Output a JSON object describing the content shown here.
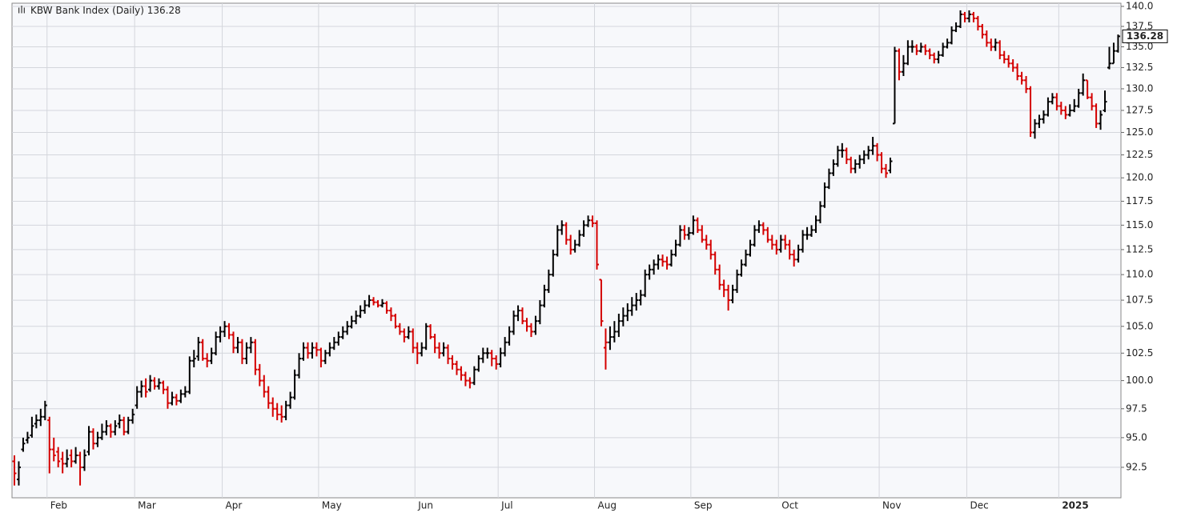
{
  "chart_data": {
    "type": "ohlc",
    "title": "KBW Bank Index (Daily)",
    "log_scale": true,
    "grid": true,
    "up_color": "#000000",
    "down_color": "#d40000",
    "ylim": [
      90,
      140.4
    ],
    "yticks": [
      92.5,
      {
        "value": 95,
        "label": "95.0"
      },
      97.5,
      {
        "value": 100,
        "label": "100.0"
      },
      102.5,
      {
        "value": 105,
        "label": "105.0"
      },
      107.5,
      {
        "value": 110,
        "label": "110.0"
      },
      112.5,
      {
        "value": 115,
        "label": "115.0"
      },
      117.5,
      {
        "value": 120,
        "label": "120.0"
      },
      122.5,
      {
        "value": 125,
        "label": "125.0"
      },
      127.5,
      {
        "value": 130,
        "label": "130.0"
      },
      132.5,
      {
        "value": 135,
        "label": "135.0"
      },
      137.5,
      {
        "value": 140,
        "label": "140.0"
      }
    ],
    "categories": [
      null,
      null,
      null,
      null,
      null,
      null,
      null,
      null,
      "Feb",
      null,
      null,
      null,
      null,
      null,
      null,
      null,
      null,
      null,
      null,
      null,
      null,
      null,
      null,
      null,
      null,
      null,
      null,
      null,
      "Mar",
      null,
      null,
      null,
      null,
      null,
      null,
      null,
      null,
      null,
      null,
      null,
      null,
      null,
      null,
      null,
      null,
      null,
      null,
      null,
      "Apr",
      null,
      null,
      null,
      null,
      null,
      null,
      null,
      null,
      null,
      null,
      null,
      null,
      null,
      null,
      null,
      null,
      null,
      null,
      null,
      null,
      null,
      "May",
      null,
      null,
      null,
      null,
      null,
      null,
      null,
      null,
      null,
      null,
      null,
      null,
      null,
      null,
      null,
      null,
      null,
      null,
      null,
      null,
      null,
      "Jun",
      null,
      null,
      null,
      null,
      null,
      null,
      null,
      null,
      null,
      null,
      null,
      null,
      null,
      null,
      null,
      null,
      null,
      null,
      "Jul",
      null,
      null,
      null,
      null,
      null,
      null,
      null,
      null,
      null,
      null,
      null,
      null,
      null,
      null,
      null,
      null,
      null,
      null,
      null,
      null,
      null,
      "Aug",
      null,
      null,
      null,
      null,
      null,
      null,
      null,
      null,
      null,
      null,
      null,
      null,
      null,
      null,
      null,
      null,
      null,
      null,
      null,
      null,
      null,
      "Sep",
      null,
      null,
      null,
      null,
      null,
      null,
      null,
      null,
      null,
      null,
      null,
      null,
      null,
      null,
      null,
      null,
      null,
      null,
      null,
      "Oct",
      null,
      null,
      null,
      null,
      null,
      null,
      null,
      null,
      null,
      null,
      null,
      null,
      null,
      null,
      null,
      null,
      null,
      null,
      null,
      null,
      null,
      null,
      "Nov",
      null,
      null,
      null,
      null,
      null,
      null,
      null,
      null,
      null,
      null,
      null,
      null,
      null,
      null,
      null,
      null,
      null,
      null,
      null,
      "Dec",
      null,
      null,
      null,
      null,
      null,
      null,
      null,
      null,
      null,
      null,
      null,
      null,
      null,
      null,
      null,
      null,
      null,
      null,
      null,
      null,
      "2025",
      null,
      null,
      null,
      null,
      null,
      null,
      null,
      null,
      null,
      null,
      null,
      null,
      null
    ],
    "open": [
      93.0,
      91.5,
      94.0,
      94.8,
      95.2,
      96.2,
      96.5,
      96.8,
      96.5,
      94.0,
      93.8,
      93.2,
      92.8,
      93.5,
      93.0,
      93.5,
      92.5,
      93.8,
      95.5,
      94.5,
      95.0,
      95.5,
      96.0,
      95.5,
      96.2,
      96.5,
      95.5,
      96.5,
      97.8,
      99.0,
      99.5,
      99.2,
      100.0,
      99.5,
      99.8,
      99.2,
      98.0,
      98.5,
      98.2,
      98.8,
      99.0,
      101.8,
      102.2,
      103.5,
      102.0,
      101.8,
      102.5,
      104.0,
      104.5,
      105.0,
      104.2,
      103.0,
      103.5,
      102.0,
      103.0,
      103.5,
      101.0,
      100.0,
      99.0,
      98.0,
      97.5,
      97.0,
      96.8,
      97.8,
      98.5,
      100.5,
      102.0,
      103.0,
      102.5,
      103.0,
      102.8,
      101.8,
      102.5,
      103.0,
      103.5,
      104.0,
      104.5,
      105.0,
      105.5,
      106.0,
      106.5,
      107.0,
      107.5,
      107.3,
      107.0,
      107.2,
      106.5,
      106.0,
      105.0,
      104.5,
      104.0,
      104.5,
      103.0,
      102.5,
      103.0,
      105.0,
      104.0,
      103.0,
      102.5,
      103.0,
      102.0,
      101.5,
      101.0,
      100.5,
      100.0,
      99.8,
      101.0,
      102.0,
      102.5,
      102.5,
      102.0,
      101.5,
      102.5,
      103.5,
      104.5,
      106.0,
      106.5,
      105.5,
      105.0,
      104.5,
      105.5,
      107.0,
      108.5,
      110.0,
      112.0,
      114.5,
      115.0,
      113.5,
      112.5,
      113.0,
      114.0,
      115.0,
      115.5,
      115.2,
      109.5,
      103.0,
      103.5,
      104.0,
      104.5,
      105.5,
      106.0,
      106.5,
      107.0,
      107.5,
      108.0,
      110.0,
      110.5,
      111.0,
      111.5,
      111.3,
      111.0,
      112.0,
      113.0,
      114.5,
      114.0,
      114.2,
      115.5,
      114.5,
      113.5,
      113.0,
      112.0,
      110.5,
      109.0,
      108.5,
      107.5,
      108.5,
      110.0,
      111.0,
      112.0,
      113.0,
      114.5,
      115.0,
      114.5,
      113.5,
      113.0,
      112.5,
      113.5,
      113.0,
      112.0,
      111.5,
      112.5,
      114.0,
      114.0,
      114.5,
      115.5,
      117.0,
      119.0,
      120.5,
      121.5,
      123.0,
      123.0,
      122.0,
      121.0,
      121.5,
      122.0,
      122.5,
      123.0,
      123.5,
      122.5,
      121.0,
      120.8,
      126.0,
      134.5,
      132.0,
      133.0,
      135.0,
      135.0,
      134.5,
      135.0,
      134.5,
      134.0,
      133.5,
      134.0,
      135.0,
      135.5,
      137.0,
      137.5,
      139.0,
      138.5,
      139.0,
      138.5,
      137.5,
      136.5,
      135.5,
      135.0,
      135.5,
      134.0,
      133.5,
      133.0,
      132.5,
      131.5,
      131.0,
      130.0,
      125.0,
      126.0,
      126.5,
      127.0,
      128.5,
      129.0,
      128.0,
      127.5,
      127.0,
      127.5,
      128.0,
      129.5,
      131.0,
      129.0,
      128.0,
      126.0,
      127.5,
      132.5,
      133.0,
      134.5
    ],
    "high": [
      93.5,
      93.0,
      95.0,
      95.5,
      96.8,
      97.0,
      97.5,
      98.2,
      96.8,
      95.0,
      94.2,
      93.8,
      94.0,
      94.0,
      94.2,
      93.8,
      94.0,
      96.0,
      95.8,
      95.5,
      96.2,
      96.5,
      96.2,
      96.5,
      97.0,
      96.8,
      96.8,
      97.5,
      99.5,
      100.0,
      100.2,
      100.5,
      100.3,
      100.2,
      100.0,
      99.5,
      99.0,
      98.8,
      99.2,
      99.5,
      102.2,
      102.8,
      104.0,
      103.8,
      102.5,
      103.0,
      104.5,
      105.0,
      105.5,
      105.3,
      104.5,
      104.0,
      103.8,
      103.5,
      104.0,
      103.8,
      101.5,
      100.5,
      99.5,
      98.5,
      98.0,
      97.8,
      98.2,
      99.0,
      101.0,
      102.5,
      103.5,
      103.5,
      103.5,
      103.5,
      103.0,
      102.8,
      103.5,
      104.0,
      104.5,
      105.0,
      105.5,
      106.0,
      106.5,
      107.0,
      107.5,
      108.0,
      107.8,
      107.5,
      107.6,
      107.4,
      106.8,
      106.2,
      105.3,
      104.8,
      105.0,
      104.8,
      103.5,
      103.5,
      105.3,
      105.2,
      104.3,
      103.5,
      103.5,
      103.3,
      102.3,
      101.8,
      101.3,
      100.8,
      100.3,
      101.3,
      102.3,
      103.0,
      103.0,
      102.8,
      102.3,
      103.0,
      104.0,
      105.0,
      106.5,
      107.0,
      106.8,
      105.8,
      105.3,
      106.0,
      107.5,
      109.0,
      110.5,
      112.5,
      115.0,
      115.5,
      115.3,
      114.0,
      113.5,
      114.5,
      115.5,
      116.0,
      116.0,
      115.5,
      109.5,
      104.8,
      105.0,
      105.5,
      106.2,
      106.8,
      107.2,
      107.8,
      108.2,
      108.5,
      110.5,
      111.0,
      111.5,
      112.0,
      112.0,
      111.8,
      112.5,
      113.5,
      115.0,
      115.0,
      114.8,
      116.0,
      115.8,
      115.0,
      114.0,
      113.5,
      112.3,
      111.0,
      109.5,
      109.0,
      109.0,
      110.5,
      111.5,
      112.5,
      113.5,
      115.0,
      115.5,
      115.3,
      114.8,
      114.0,
      113.5,
      114.0,
      114.0,
      113.5,
      112.5,
      113.0,
      114.5,
      114.8,
      115.0,
      116.0,
      117.5,
      119.5,
      121.0,
      122.0,
      123.5,
      123.8,
      123.3,
      122.3,
      122.0,
      122.5,
      123.0,
      123.5,
      124.5,
      123.8,
      122.8,
      121.5,
      122.2,
      135.0,
      134.8,
      134.0,
      135.8,
      135.8,
      135.3,
      135.5,
      135.3,
      134.8,
      134.3,
      134.5,
      135.5,
      136.0,
      137.5,
      138.0,
      139.5,
      139.3,
      139.5,
      139.3,
      138.8,
      137.8,
      137.0,
      136.0,
      136.0,
      135.8,
      134.5,
      134.0,
      133.5,
      133.0,
      132.0,
      131.5,
      130.3,
      126.5,
      127.0,
      127.5,
      129.0,
      129.5,
      129.5,
      128.5,
      128.0,
      128.2,
      128.8,
      130.0,
      131.8,
      131.0,
      129.5,
      128.3,
      127.5,
      129.8,
      135.0,
      135.5,
      136.5
    ],
    "low": [
      91.0,
      91.0,
      93.8,
      94.5,
      95.0,
      95.8,
      96.0,
      96.5,
      92.0,
      93.0,
      92.5,
      92.0,
      92.5,
      92.5,
      92.8,
      91.0,
      92.2,
      93.5,
      94.0,
      94.2,
      94.8,
      95.2,
      95.0,
      95.2,
      95.8,
      95.2,
      95.3,
      96.2,
      97.5,
      98.5,
      98.5,
      99.0,
      99.2,
      99.2,
      98.8,
      97.5,
      97.8,
      97.8,
      98.0,
      98.5,
      98.8,
      101.2,
      101.8,
      101.8,
      101.2,
      101.5,
      102.3,
      103.5,
      104.0,
      103.8,
      102.5,
      102.5,
      101.5,
      101.5,
      102.5,
      100.5,
      99.5,
      98.5,
      97.5,
      96.8,
      96.5,
      96.3,
      96.5,
      97.5,
      98.3,
      100.2,
      101.8,
      102.0,
      102.0,
      102.2,
      101.2,
      101.5,
      102.2,
      102.8,
      103.2,
      103.8,
      104.2,
      104.8,
      105.2,
      105.8,
      106.2,
      106.8,
      107.0,
      106.8,
      106.8,
      106.2,
      105.5,
      104.8,
      104.2,
      103.5,
      103.8,
      102.5,
      101.5,
      102.2,
      102.8,
      103.8,
      102.5,
      102.0,
      102.2,
      101.5,
      101.0,
      100.5,
      100.0,
      99.5,
      99.3,
      99.6,
      100.8,
      101.6,
      102.0,
      101.3,
      101.0,
      101.2,
      102.2,
      103.2,
      104.2,
      105.5,
      105.2,
      104.5,
      104.0,
      104.2,
      105.2,
      106.8,
      108.2,
      109.8,
      111.8,
      114.0,
      113.0,
      112.0,
      112.2,
      112.8,
      113.8,
      114.8,
      114.8,
      110.5,
      105.0,
      101.0,
      102.8,
      103.5,
      104.0,
      105.0,
      105.5,
      106.0,
      106.5,
      107.0,
      107.8,
      109.5,
      110.0,
      110.5,
      110.8,
      110.5,
      110.8,
      111.8,
      112.8,
      113.5,
      113.5,
      114.0,
      114.2,
      113.2,
      112.5,
      111.5,
      110.0,
      108.5,
      107.8,
      106.5,
      107.2,
      108.2,
      109.8,
      110.8,
      111.8,
      112.8,
      114.2,
      114.0,
      113.2,
      112.5,
      112.0,
      112.2,
      112.5,
      111.5,
      110.8,
      111.2,
      112.2,
      113.5,
      113.8,
      114.2,
      115.2,
      116.8,
      118.8,
      120.2,
      121.2,
      122.2,
      121.5,
      120.5,
      120.5,
      121.0,
      121.5,
      122.0,
      122.5,
      121.8,
      120.5,
      120.0,
      120.5,
      126.0,
      131.0,
      131.5,
      132.8,
      134.3,
      134.0,
      134.3,
      134.0,
      133.5,
      133.0,
      133.0,
      133.8,
      134.8,
      135.3,
      136.8,
      137.3,
      138.0,
      138.0,
      138.0,
      137.0,
      136.0,
      135.0,
      134.5,
      134.5,
      133.5,
      133.0,
      132.5,
      132.0,
      131.0,
      130.5,
      129.5,
      124.5,
      124.3,
      125.5,
      126.0,
      126.8,
      128.2,
      127.5,
      127.0,
      126.5,
      126.8,
      127.3,
      127.8,
      129.2,
      128.8,
      127.5,
      125.5,
      125.3,
      127.3,
      132.3,
      133.0,
      134.3
    ],
    "close": [
      92.0,
      92.5,
      94.5,
      95.0,
      96.0,
      96.5,
      96.8,
      97.8,
      94.0,
      93.5,
      93.0,
      92.8,
      93.2,
      93.0,
      93.5,
      92.5,
      93.5,
      95.5,
      94.5,
      95.0,
      95.5,
      96.0,
      95.5,
      96.0,
      96.5,
      95.5,
      96.5,
      97.0,
      99.0,
      99.5,
      99.0,
      100.0,
      99.5,
      99.8,
      99.2,
      98.0,
      98.5,
      98.2,
      98.8,
      99.0,
      101.8,
      102.0,
      103.5,
      102.0,
      101.8,
      102.5,
      104.0,
      104.5,
      105.0,
      104.2,
      103.0,
      103.5,
      102.0,
      103.0,
      103.5,
      101.0,
      100.0,
      99.0,
      98.0,
      97.5,
      97.0,
      96.8,
      97.8,
      98.5,
      100.5,
      102.0,
      103.0,
      102.5,
      103.0,
      102.8,
      101.8,
      102.5,
      103.0,
      103.5,
      104.0,
      104.5,
      105.0,
      105.5,
      106.0,
      106.5,
      107.0,
      107.5,
      107.3,
      107.0,
      107.2,
      106.5,
      106.0,
      105.0,
      104.5,
      104.0,
      104.5,
      103.0,
      102.5,
      103.0,
      105.0,
      104.0,
      103.0,
      102.5,
      103.0,
      102.0,
      101.5,
      101.0,
      100.5,
      100.0,
      99.8,
      101.0,
      102.0,
      102.5,
      102.5,
      102.0,
      101.5,
      102.5,
      103.5,
      104.5,
      106.0,
      106.5,
      105.5,
      105.0,
      104.5,
      105.5,
      107.0,
      108.5,
      110.0,
      112.0,
      114.5,
      115.0,
      113.5,
      112.5,
      113.0,
      114.0,
      115.0,
      115.5,
      115.2,
      111.0,
      105.5,
      103.5,
      104.0,
      104.5,
      105.5,
      106.0,
      106.5,
      107.0,
      107.5,
      108.0,
      110.0,
      110.5,
      111.0,
      111.5,
      111.3,
      111.0,
      112.0,
      113.0,
      114.5,
      114.0,
      114.2,
      115.5,
      114.5,
      113.5,
      113.0,
      112.0,
      110.5,
      109.0,
      108.5,
      107.5,
      108.5,
      110.0,
      111.0,
      112.0,
      113.0,
      114.5,
      115.0,
      114.5,
      113.5,
      113.0,
      112.5,
      113.5,
      113.0,
      112.0,
      111.5,
      112.5,
      114.0,
      114.0,
      114.5,
      115.5,
      117.0,
      119.0,
      120.5,
      121.5,
      123.0,
      123.0,
      122.0,
      121.0,
      121.5,
      122.0,
      122.5,
      123.0,
      123.5,
      122.5,
      121.0,
      120.5,
      121.8,
      134.5,
      132.0,
      133.0,
      135.0,
      135.0,
      134.5,
      135.0,
      134.5,
      134.0,
      133.5,
      134.0,
      135.0,
      135.5,
      137.0,
      137.5,
      139.0,
      138.5,
      139.0,
      138.5,
      137.5,
      136.5,
      135.5,
      135.0,
      135.5,
      134.0,
      133.5,
      133.0,
      132.5,
      131.5,
      131.0,
      130.0,
      125.0,
      126.0,
      126.5,
      127.0,
      128.5,
      129.0,
      128.0,
      127.5,
      127.0,
      127.5,
      128.0,
      129.5,
      131.0,
      129.0,
      128.0,
      126.0,
      127.0,
      128.5,
      133.0,
      134.5,
      136.28
    ]
  }
}
